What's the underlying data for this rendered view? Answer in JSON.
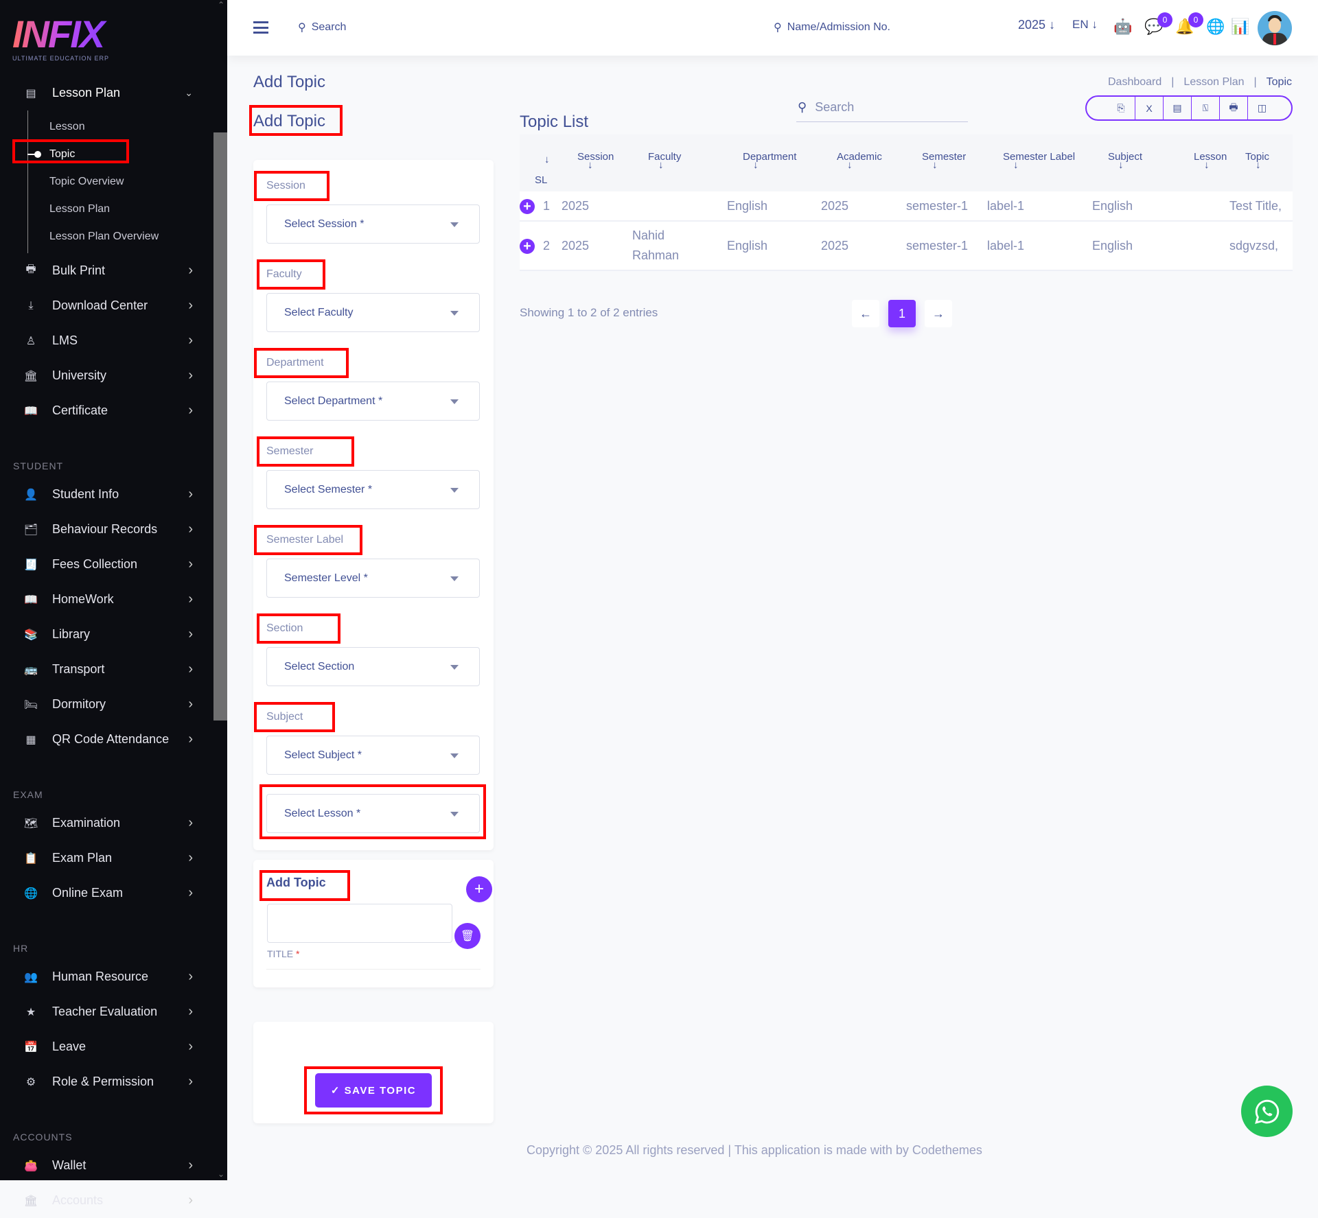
{
  "brand": {
    "name": "INFIX",
    "tagline": "ULTIMATE EDUCATION ERP"
  },
  "colors": {
    "accent": "#7c32ff",
    "text": "#415094",
    "muted": "#828bb2",
    "sidebar": "#0c0d12",
    "highlight": "#ff0000",
    "whatsapp": "#25c35a"
  },
  "sidebar": {
    "lesson_plan": {
      "label": "Lesson Plan",
      "icon": "list-icon",
      "sub": [
        "Lesson",
        "Topic",
        "Topic Overview",
        "Lesson Plan",
        "Lesson Plan Overview"
      ]
    },
    "groups": [
      {
        "section": "",
        "items": [
          {
            "label": "Bulk Print",
            "icon": "printer-icon"
          },
          {
            "label": "Download Center",
            "icon": "download-icon"
          },
          {
            "label": "LMS",
            "icon": "lms-icon"
          },
          {
            "label": "University",
            "icon": "bank-icon"
          },
          {
            "label": "Certificate",
            "icon": "book-icon"
          }
        ]
      },
      {
        "section": "STUDENT",
        "items": [
          {
            "label": "Student Info",
            "icon": "user-icon"
          },
          {
            "label": "Behaviour Records",
            "icon": "records-icon"
          },
          {
            "label": "Fees Collection",
            "icon": "fees-icon"
          },
          {
            "label": "HomeWork",
            "icon": "book-icon"
          },
          {
            "label": "Library",
            "icon": "library-icon"
          },
          {
            "label": "Transport",
            "icon": "bus-icon"
          },
          {
            "label": "Dormitory",
            "icon": "bed-icon"
          },
          {
            "label": "QR Code Attendance",
            "icon": "qr-icon"
          }
        ]
      },
      {
        "section": "EXAM",
        "items": [
          {
            "label": "Examination",
            "icon": "map-icon"
          },
          {
            "label": "Exam Plan",
            "icon": "clipboard-icon"
          },
          {
            "label": "Online Exam",
            "icon": "globe-icon"
          }
        ]
      },
      {
        "section": "HR",
        "items": [
          {
            "label": "Human Resource",
            "icon": "team-icon"
          },
          {
            "label": "Teacher Evaluation",
            "icon": "star-icon"
          },
          {
            "label": "Leave",
            "icon": "leave-icon"
          },
          {
            "label": "Role & Permission",
            "icon": "shield-icon"
          }
        ]
      },
      {
        "section": "ACCOUNTS",
        "items": [
          {
            "label": "Wallet",
            "icon": "wallet-icon"
          },
          {
            "label": "Accounts",
            "icon": "bank-icon"
          }
        ]
      }
    ]
  },
  "header": {
    "search": "Search",
    "student_search": "Name/Admission No.",
    "year": "2025",
    "lang": "EN",
    "chat_count": "0",
    "notif_count": "0"
  },
  "page": {
    "title": "Add Topic",
    "form_title": "Add Topic"
  },
  "form": {
    "fields": [
      {
        "label": "Session",
        "placeholder": "Select Session *"
      },
      {
        "label": "Faculty",
        "placeholder": "Select Faculty"
      },
      {
        "label": "Department",
        "placeholder": "Select Department *"
      },
      {
        "label": "Semester",
        "placeholder": "Select Semester *"
      },
      {
        "label": "Semester Label",
        "placeholder": "Semester Level *"
      },
      {
        "label": "Section",
        "placeholder": "Select Section"
      },
      {
        "label": "Subject",
        "placeholder": "Select Subject *"
      }
    ],
    "lesson_placeholder": "Select Lesson *",
    "add_topic_title": "Add Topic",
    "title_label": "TITLE",
    "required": "*",
    "title_value": "",
    "save": "✓ SAVE TOPIC"
  },
  "breadcrumb": [
    "Dashboard",
    "|",
    "Lesson Plan",
    "|",
    "Topic"
  ],
  "list": {
    "title": "Topic List",
    "search_placeholder": "Search",
    "exports": [
      "copy-icon",
      "excel-icon",
      "csv-icon",
      "pdf-icon",
      "print-icon",
      "columns-icon"
    ],
    "columns": [
      "SL",
      "Session",
      "Faculty",
      "Department",
      "Academic",
      "Semester",
      "Semester Label",
      "Subject",
      "Lesson",
      "Topic"
    ],
    "rows": [
      [
        "1",
        "2025",
        "",
        "English",
        "2025",
        "semester-1",
        "label-1",
        "English",
        "",
        "Test Title,"
      ],
      [
        "2",
        "2025",
        "Nahid Rahman",
        "English",
        "2025",
        "semester-1",
        "label-1",
        "English",
        "",
        "sdgvzsd,"
      ]
    ],
    "showing": "Showing 1 to 2 of 2 entries",
    "page": "1"
  },
  "footer": "Copyright © 2025 All rights reserved | This application is made with by Codethemes"
}
